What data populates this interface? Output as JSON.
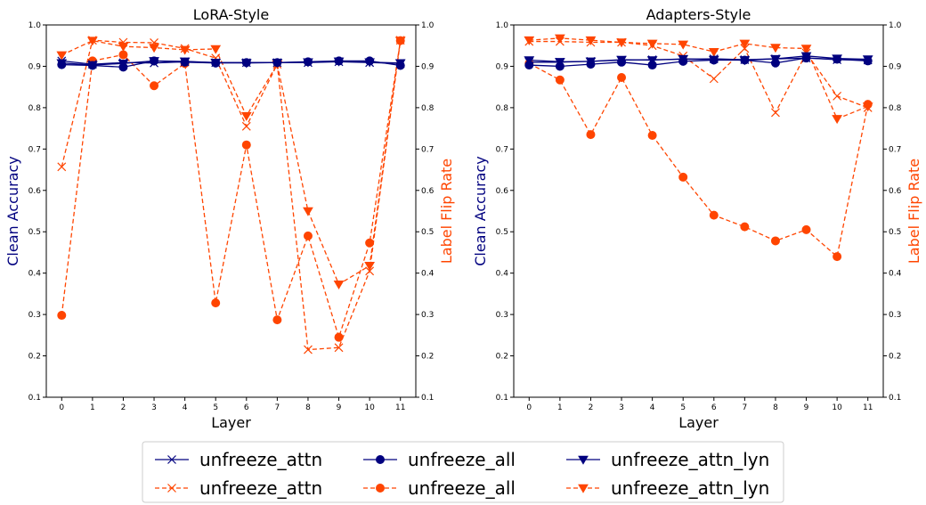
{
  "colors": {
    "accuracy": "#00007f",
    "flip": "#ff4500",
    "legend_border": "#cccccc"
  },
  "chart_data": [
    {
      "type": "line",
      "title": "LoRA-Style",
      "xlabel": "Layer",
      "ylabel_left": "Clean Accuracy",
      "ylabel_right": "Label Flip Rate",
      "x": [
        0,
        1,
        2,
        3,
        4,
        5,
        6,
        7,
        8,
        9,
        10,
        11
      ],
      "ylim_left": [
        0.1,
        1.0
      ],
      "ylim_right": [
        0.1,
        1.0
      ],
      "yticks": [
        "0.1",
        "0.2",
        "0.3",
        "0.4",
        "0.5",
        "0.6",
        "0.7",
        "0.8",
        "0.9",
        "1.0"
      ],
      "series": [
        {
          "name": "unfreeze_attn",
          "axis": "left",
          "marker": "x",
          "style": "solid",
          "values": [
            0.913,
            0.905,
            0.909,
            0.908,
            0.911,
            0.909,
            0.909,
            0.909,
            0.909,
            0.911,
            0.909,
            0.907
          ]
        },
        {
          "name": "unfreeze_all",
          "axis": "left",
          "marker": "circle",
          "style": "solid",
          "values": [
            0.904,
            0.902,
            0.898,
            0.913,
            0.91,
            0.908,
            0.909,
            0.909,
            0.911,
            0.913,
            0.913,
            0.902
          ]
        },
        {
          "name": "unfreeze_attn_lyn",
          "axis": "left",
          "marker": "triangle",
          "style": "solid",
          "values": [
            0.908,
            0.903,
            0.907,
            0.913,
            0.912,
            0.909,
            0.908,
            0.909,
            0.91,
            0.912,
            0.91,
            0.908
          ]
        },
        {
          "name": "unfreeze_attn",
          "axis": "right",
          "marker": "x",
          "style": "dashed",
          "values": [
            0.657,
            0.963,
            0.958,
            0.957,
            0.943,
            0.92,
            0.755,
            0.905,
            0.215,
            0.22,
            0.405,
            0.963
          ]
        },
        {
          "name": "unfreeze_all",
          "axis": "right",
          "marker": "circle",
          "style": "dashed",
          "values": [
            0.298,
            0.913,
            0.928,
            0.853,
            0.907,
            0.328,
            0.71,
            0.287,
            0.49,
            0.245,
            0.473,
            0.962
          ]
        },
        {
          "name": "unfreeze_attn_lyn",
          "axis": "right",
          "marker": "triangle",
          "style": "dashed",
          "values": [
            0.927,
            0.962,
            0.948,
            0.945,
            0.94,
            0.942,
            0.78,
            0.905,
            0.55,
            0.373,
            0.418,
            0.962
          ]
        }
      ]
    },
    {
      "type": "line",
      "title": "Adapters-Style",
      "xlabel": "Layer",
      "ylabel_left": "Clean Accuracy",
      "ylabel_right": "Label Flip Rate",
      "x": [
        0,
        1,
        2,
        3,
        4,
        5,
        6,
        7,
        8,
        9,
        10,
        11
      ],
      "ylim_left": [
        0.1,
        1.0
      ],
      "ylim_right": [
        0.1,
        1.0
      ],
      "yticks": [
        "0.1",
        "0.2",
        "0.3",
        "0.4",
        "0.5",
        "0.6",
        "0.7",
        "0.8",
        "0.9",
        "1.0"
      ],
      "series": [
        {
          "name": "unfreeze_attn",
          "axis": "left",
          "marker": "x",
          "style": "solid",
          "values": [
            0.91,
            0.91,
            0.912,
            0.915,
            0.916,
            0.917,
            0.918,
            0.916,
            0.918,
            0.92,
            0.916,
            0.915
          ]
        },
        {
          "name": "unfreeze_all",
          "axis": "left",
          "marker": "circle",
          "style": "solid",
          "values": [
            0.903,
            0.9,
            0.905,
            0.91,
            0.903,
            0.912,
            0.915,
            0.915,
            0.908,
            0.92,
            0.917,
            0.913
          ]
        },
        {
          "name": "unfreeze_attn_lyn",
          "axis": "left",
          "marker": "triangle",
          "style": "solid",
          "values": [
            0.915,
            0.911,
            0.912,
            0.916,
            0.915,
            0.918,
            0.916,
            0.915,
            0.918,
            0.925,
            0.919,
            0.917
          ]
        },
        {
          "name": "unfreeze_attn",
          "axis": "right",
          "marker": "x",
          "style": "dashed",
          "values": [
            0.96,
            0.96,
            0.958,
            0.958,
            0.95,
            0.925,
            0.87,
            0.943,
            0.788,
            0.932,
            0.828,
            0.8
          ]
        },
        {
          "name": "unfreeze_all",
          "axis": "right",
          "marker": "circle",
          "style": "dashed",
          "values": [
            0.907,
            0.867,
            0.735,
            0.873,
            0.733,
            0.632,
            0.54,
            0.512,
            0.478,
            0.505,
            0.44,
            0.808
          ]
        },
        {
          "name": "unfreeze_attn_lyn",
          "axis": "right",
          "marker": "triangle",
          "style": "dashed",
          "values": [
            0.963,
            0.968,
            0.963,
            0.958,
            0.955,
            0.953,
            0.935,
            0.955,
            0.945,
            0.943,
            0.773,
            0.803
          ]
        }
      ]
    }
  ],
  "legend": [
    {
      "label": "unfreeze_attn",
      "marker": "x",
      "style": "solid"
    },
    {
      "label": "unfreeze_all",
      "marker": "circle",
      "style": "solid"
    },
    {
      "label": "unfreeze_attn_lyn",
      "marker": "triangle",
      "style": "solid"
    },
    {
      "label": "unfreeze_attn",
      "marker": "x",
      "style": "dashed"
    },
    {
      "label": "unfreeze_all",
      "marker": "circle",
      "style": "dashed"
    },
    {
      "label": "unfreeze_attn_lyn",
      "marker": "triangle",
      "style": "dashed"
    }
  ]
}
